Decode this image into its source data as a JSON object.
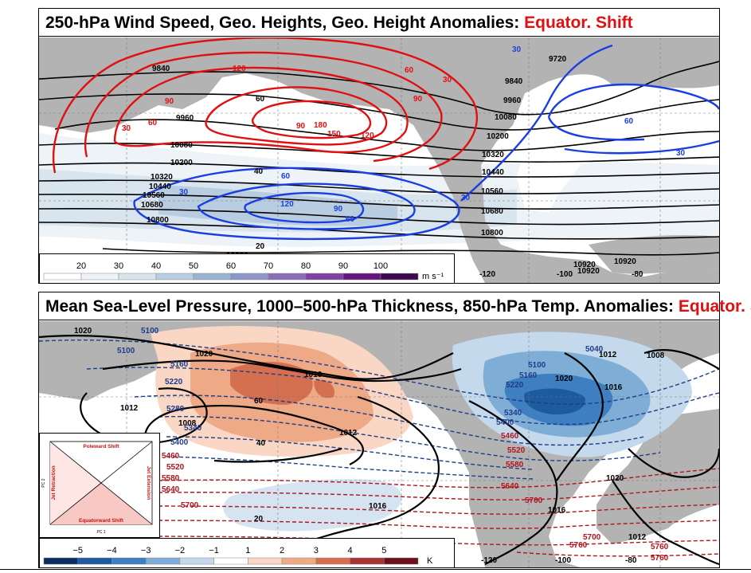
{
  "panels": [
    {
      "title_main": "250-hPa Wind Speed, Geo. Heights, Geo. Height Anomalies:",
      "title_tag": "Equator. Shift",
      "colorbar": {
        "ticks": [
          "20",
          "30",
          "40",
          "50",
          "60",
          "70",
          "80",
          "90",
          "100"
        ],
        "unit": "m s⁻¹",
        "colors": [
          "#ffffff",
          "#eef3f8",
          "#d8e4ee",
          "#b9cde0",
          "#9bb4d3",
          "#8c96c8",
          "#8b6db9",
          "#7f3fa3",
          "#67157f",
          "#3c0a4d"
        ]
      },
      "lon_labels": [
        "-120",
        "-100",
        "-80"
      ],
      "height_labels": [
        "9720",
        "9840",
        "9840",
        "9960",
        "9960",
        "10080",
        "10080",
        "10200",
        "10200",
        "10320",
        "10320",
        "10440",
        "10440",
        "10560",
        "10560",
        "10680",
        "10680",
        "10800",
        "10800",
        "10920",
        "10920",
        "10920",
        "10920"
      ],
      "wind_labels": [
        "60",
        "40",
        "20"
      ],
      "pos_anom_labels": [
        "120",
        "60",
        "90",
        "30",
        "30",
        "90",
        "60",
        "90",
        "180",
        "150",
        "120"
      ],
      "neg_anom_labels": [
        "30",
        "60",
        "30",
        "60",
        "120",
        "90",
        "60",
        "30",
        "30"
      ]
    },
    {
      "title_main": "Mean Sea-Level Pressure, 1000–500-hPa Thickness, 850-hPa Temp. Anomalies:",
      "title_tag": "Equator. Shift",
      "colorbar": {
        "ticks": [
          "−5",
          "−4",
          "−3",
          "−2",
          "−1",
          "1",
          "2",
          "3",
          "4",
          "5"
        ],
        "unit": "K",
        "colors": [
          "#0b2c5c",
          "#1d5a9e",
          "#3d7fc1",
          "#7eaed6",
          "#c4d9ec",
          "#ffffff",
          "#f9d7c4",
          "#eeaa86",
          "#d4704f",
          "#a93432",
          "#6b0f1a"
        ]
      },
      "lon_labels": [
        "-120",
        "-100",
        "-80"
      ],
      "pressure_labels": [
        "1020",
        "1020",
        "1016",
        "1012",
        "1008",
        "1012",
        "1016",
        "1020",
        "1012",
        "1008",
        "1016",
        "1016",
        "1020",
        "1012"
      ],
      "thickness_cold_labels": [
        "5100",
        "5100",
        "5160",
        "5220",
        "5280",
        "5340",
        "5400",
        "5040",
        "5100",
        "5160",
        "5220",
        "5340",
        "5400"
      ],
      "thickness_warm_labels": [
        "5460",
        "5520",
        "5580",
        "5640",
        "5700",
        "5460",
        "5520",
        "5580",
        "5640",
        "5700",
        "5700",
        "5760",
        "5760",
        "5760"
      ],
      "anomaly_labels": [
        "60",
        "40",
        "20"
      ],
      "inset": {
        "top": "Poleward Shift",
        "bottom": "Equatorward Shift",
        "left": "Jet Retraction",
        "right": "Jet Extension",
        "xlabel": "PC 1",
        "ylabel": "PC 2"
      }
    }
  ],
  "colors": {
    "land": "#b3b3b3",
    "positive_anomaly": "#e01010",
    "negative_anomaly": "#1a3fe0",
    "warm_thickness": "#b0141c",
    "cold_thickness": "#1f3d8a",
    "contour": "#000000"
  }
}
